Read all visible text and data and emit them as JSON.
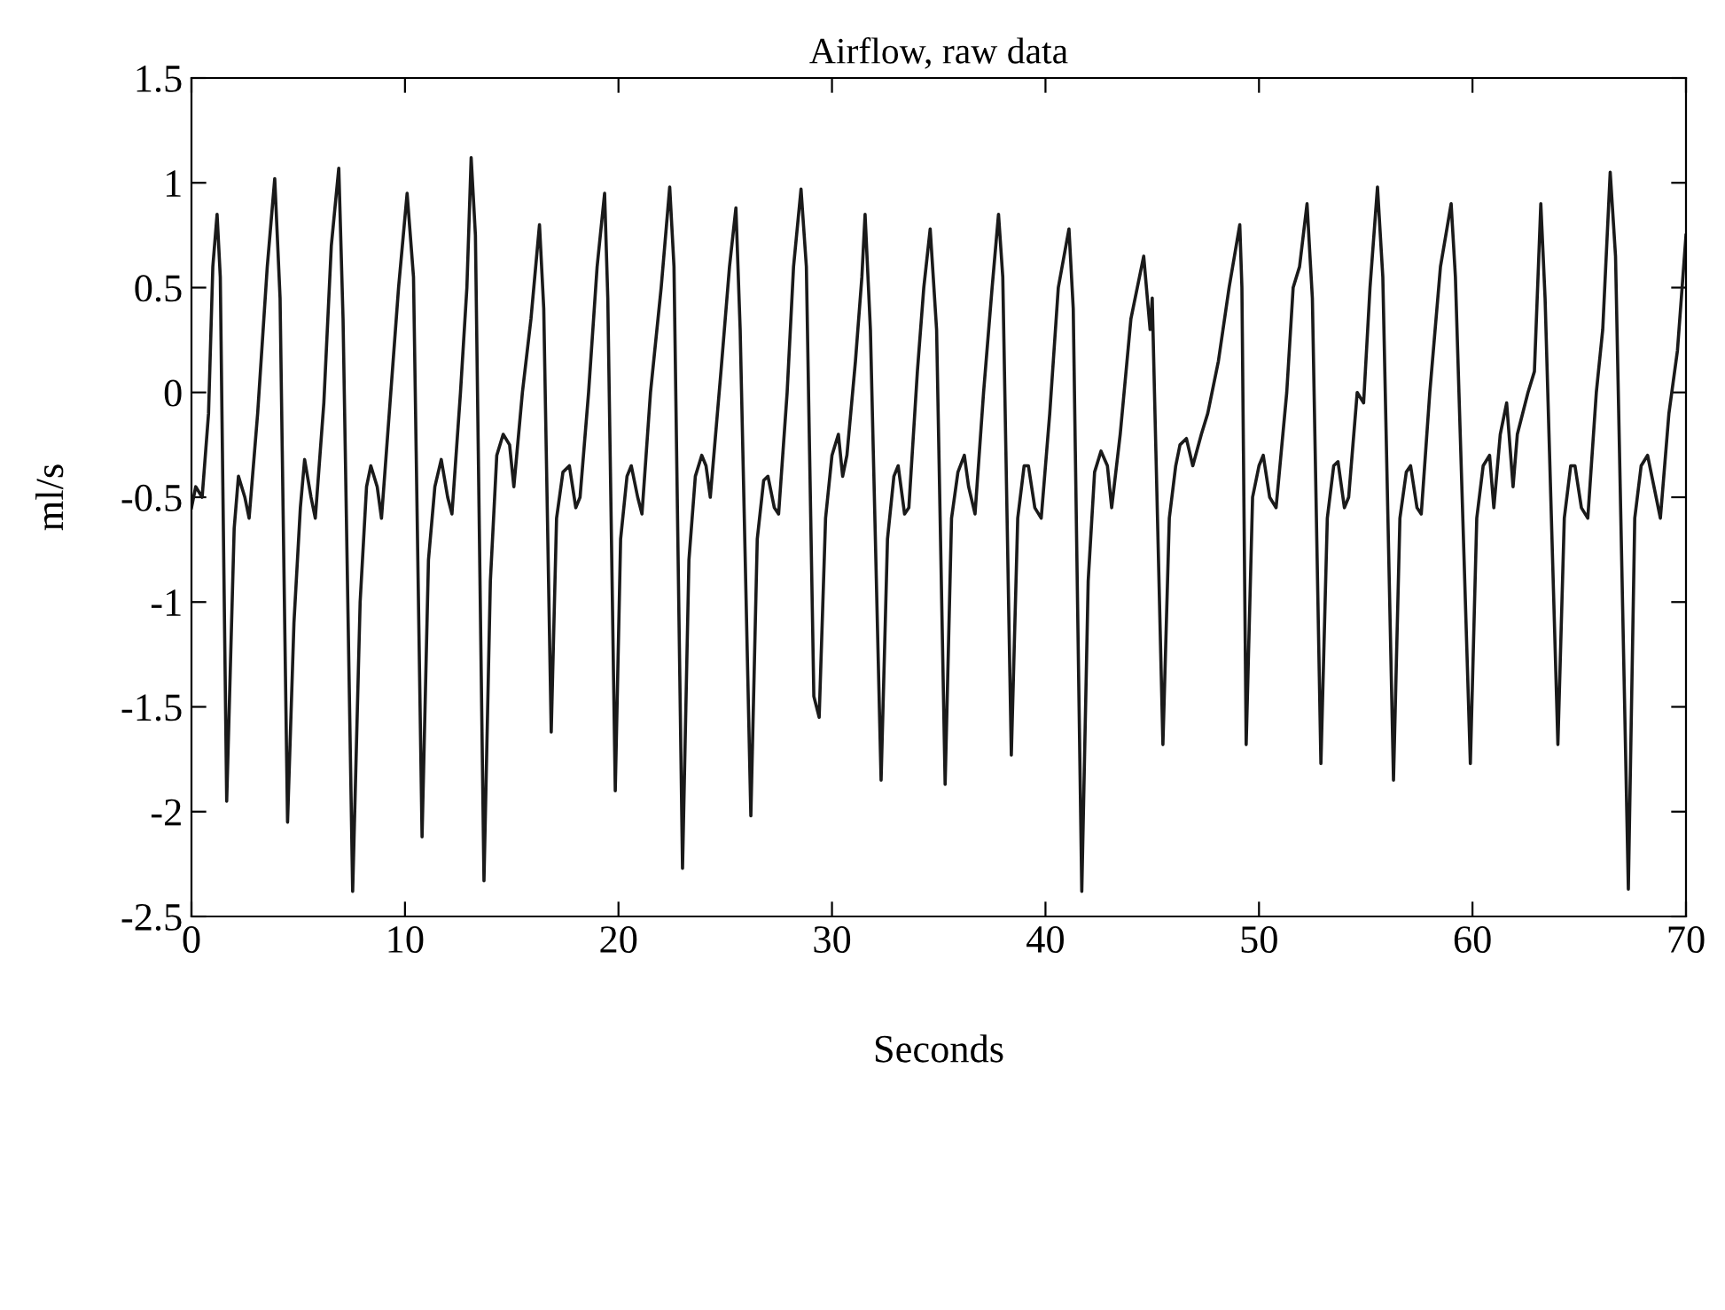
{
  "chart_data": {
    "type": "line",
    "title": "Airflow, raw data",
    "xlabel": "Seconds",
    "ylabel": "ml/s",
    "xlim": [
      0,
      70
    ],
    "xticks": [
      0,
      10,
      20,
      30,
      40,
      50,
      60,
      70
    ],
    "ylim": [
      -2.5,
      1.5
    ],
    "yticks": [
      -2.5,
      -2,
      -1.5,
      -1,
      -0.5,
      0,
      0.5,
      1,
      1.5
    ],
    "grid": false,
    "marker": "none",
    "line_style": "solid",
    "series": [
      {
        "color": "#1a1a1a",
        "x": [
          0,
          0.2,
          0.5,
          0.8,
          1.0,
          1.2,
          1.35,
          1.65,
          2.0,
          2.2,
          2.5,
          2.7,
          3.1,
          3.55,
          3.9,
          4.15,
          4.5,
          4.8,
          5.1,
          5.3,
          5.6,
          5.8,
          6.2,
          6.55,
          6.9,
          7.1,
          7.55,
          7.9,
          8.2,
          8.4,
          8.7,
          8.9,
          9.3,
          9.7,
          10.1,
          10.4,
          10.8,
          11.1,
          11.4,
          11.7,
          12.0,
          12.2,
          12.6,
          12.9,
          13.1,
          13.3,
          13.7,
          14.0,
          14.3,
          14.6,
          14.9,
          15.1,
          15.5,
          15.9,
          16.3,
          16.5,
          16.85,
          17.1,
          17.4,
          17.7,
          18.0,
          18.2,
          18.6,
          19.0,
          19.35,
          19.5,
          19.85,
          20.1,
          20.4,
          20.6,
          20.9,
          21.1,
          21.5,
          22.0,
          22.4,
          22.6,
          23.0,
          23.3,
          23.6,
          23.9,
          24.1,
          24.3,
          24.8,
          25.2,
          25.5,
          25.7,
          26.2,
          26.5,
          26.8,
          27.0,
          27.3,
          27.5,
          27.9,
          28.2,
          28.55,
          28.8,
          29.15,
          29.4,
          29.7,
          30.0,
          30.3,
          30.5,
          30.7,
          31.1,
          31.4,
          31.55,
          31.8,
          32.3,
          32.6,
          32.9,
          33.1,
          33.4,
          33.6,
          34.0,
          34.3,
          34.6,
          34.9,
          35.3,
          35.6,
          35.9,
          36.2,
          36.4,
          36.7,
          37.1,
          37.5,
          37.8,
          38.0,
          38.4,
          38.7,
          39.0,
          39.2,
          39.5,
          39.8,
          40.2,
          40.6,
          41.1,
          41.3,
          41.7,
          42.0,
          42.3,
          42.6,
          42.9,
          43.1,
          43.5,
          44.0,
          44.6,
          44.9,
          45.0,
          45.5,
          45.8,
          46.1,
          46.3,
          46.6,
          46.9,
          47.3,
          47.6,
          48.1,
          48.6,
          49.1,
          49.2,
          49.4,
          49.7,
          50.0,
          50.2,
          50.5,
          50.8,
          51.3,
          51.6,
          51.9,
          52.25,
          52.5,
          52.9,
          53.2,
          53.5,
          53.7,
          54.0,
          54.2,
          54.6,
          54.9,
          55.2,
          55.55,
          55.8,
          56.3,
          56.6,
          56.9,
          57.1,
          57.4,
          57.6,
          58.0,
          58.5,
          59.0,
          59.2,
          59.9,
          60.2,
          60.5,
          60.8,
          61.0,
          61.3,
          61.6,
          61.9,
          62.1,
          62.6,
          62.9,
          63.2,
          63.4,
          64.0,
          64.3,
          64.6,
          64.8,
          65.1,
          65.4,
          65.8,
          66.1,
          66.45,
          66.7,
          67.3,
          67.6,
          67.9,
          68.2,
          68.5,
          68.8,
          69.2,
          69.6,
          70.0
        ],
        "values": [
          -0.55,
          -0.45,
          -0.5,
          -0.1,
          0.6,
          0.85,
          0.55,
          -1.95,
          -0.65,
          -0.4,
          -0.5,
          -0.6,
          -0.1,
          0.6,
          1.02,
          0.45,
          -2.05,
          -1.1,
          -0.55,
          -0.32,
          -0.5,
          -0.6,
          -0.05,
          0.7,
          1.07,
          0.35,
          -2.38,
          -1.0,
          -0.45,
          -0.35,
          -0.45,
          -0.6,
          -0.05,
          0.5,
          0.95,
          0.55,
          -2.12,
          -0.8,
          -0.45,
          -0.32,
          -0.5,
          -0.58,
          0.0,
          0.5,
          1.12,
          0.75,
          -2.33,
          -0.9,
          -0.3,
          -0.2,
          -0.25,
          -0.45,
          0.0,
          0.35,
          0.8,
          0.4,
          -1.62,
          -0.6,
          -0.38,
          -0.35,
          -0.55,
          -0.5,
          0.0,
          0.6,
          0.95,
          0.45,
          -1.9,
          -0.7,
          -0.4,
          -0.35,
          -0.5,
          -0.58,
          0.0,
          0.5,
          0.98,
          0.6,
          -2.27,
          -0.8,
          -0.4,
          -0.3,
          -0.35,
          -0.5,
          0.1,
          0.6,
          0.88,
          0.3,
          -2.02,
          -0.7,
          -0.42,
          -0.4,
          -0.55,
          -0.58,
          0.0,
          0.6,
          0.97,
          0.6,
          -1.45,
          -1.55,
          -0.6,
          -0.3,
          -0.2,
          -0.4,
          -0.3,
          0.15,
          0.55,
          0.85,
          0.3,
          -1.85,
          -0.7,
          -0.4,
          -0.35,
          -0.58,
          -0.55,
          0.1,
          0.5,
          0.78,
          0.3,
          -1.87,
          -0.6,
          -0.38,
          -0.3,
          -0.45,
          -0.58,
          0.0,
          0.5,
          0.85,
          0.55,
          -1.73,
          -0.6,
          -0.35,
          -0.35,
          -0.55,
          -0.6,
          -0.1,
          0.5,
          0.78,
          0.4,
          -2.38,
          -0.9,
          -0.38,
          -0.28,
          -0.35,
          -0.55,
          -0.2,
          0.35,
          0.65,
          0.3,
          0.45,
          -1.68,
          -0.6,
          -0.35,
          -0.25,
          -0.22,
          -0.35,
          -0.2,
          -0.1,
          0.15,
          0.5,
          0.8,
          0.5,
          -1.68,
          -0.5,
          -0.35,
          -0.3,
          -0.5,
          -0.55,
          0.0,
          0.5,
          0.6,
          0.9,
          0.45,
          -1.77,
          -0.6,
          -0.35,
          -0.33,
          -0.55,
          -0.5,
          0.0,
          -0.05,
          0.5,
          0.98,
          0.55,
          -1.85,
          -0.6,
          -0.38,
          -0.35,
          -0.55,
          -0.58,
          0.0,
          0.6,
          0.9,
          0.55,
          -1.77,
          -0.6,
          -0.35,
          -0.3,
          -0.55,
          -0.2,
          -0.05,
          -0.45,
          -0.2,
          0.0,
          0.1,
          0.9,
          0.45,
          -1.68,
          -0.6,
          -0.35,
          -0.35,
          -0.55,
          -0.6,
          0.0,
          0.3,
          1.05,
          0.65,
          -2.37,
          -0.6,
          -0.35,
          -0.3,
          -0.45,
          -0.6,
          -0.1,
          0.2,
          0.75
        ]
      }
    ]
  }
}
